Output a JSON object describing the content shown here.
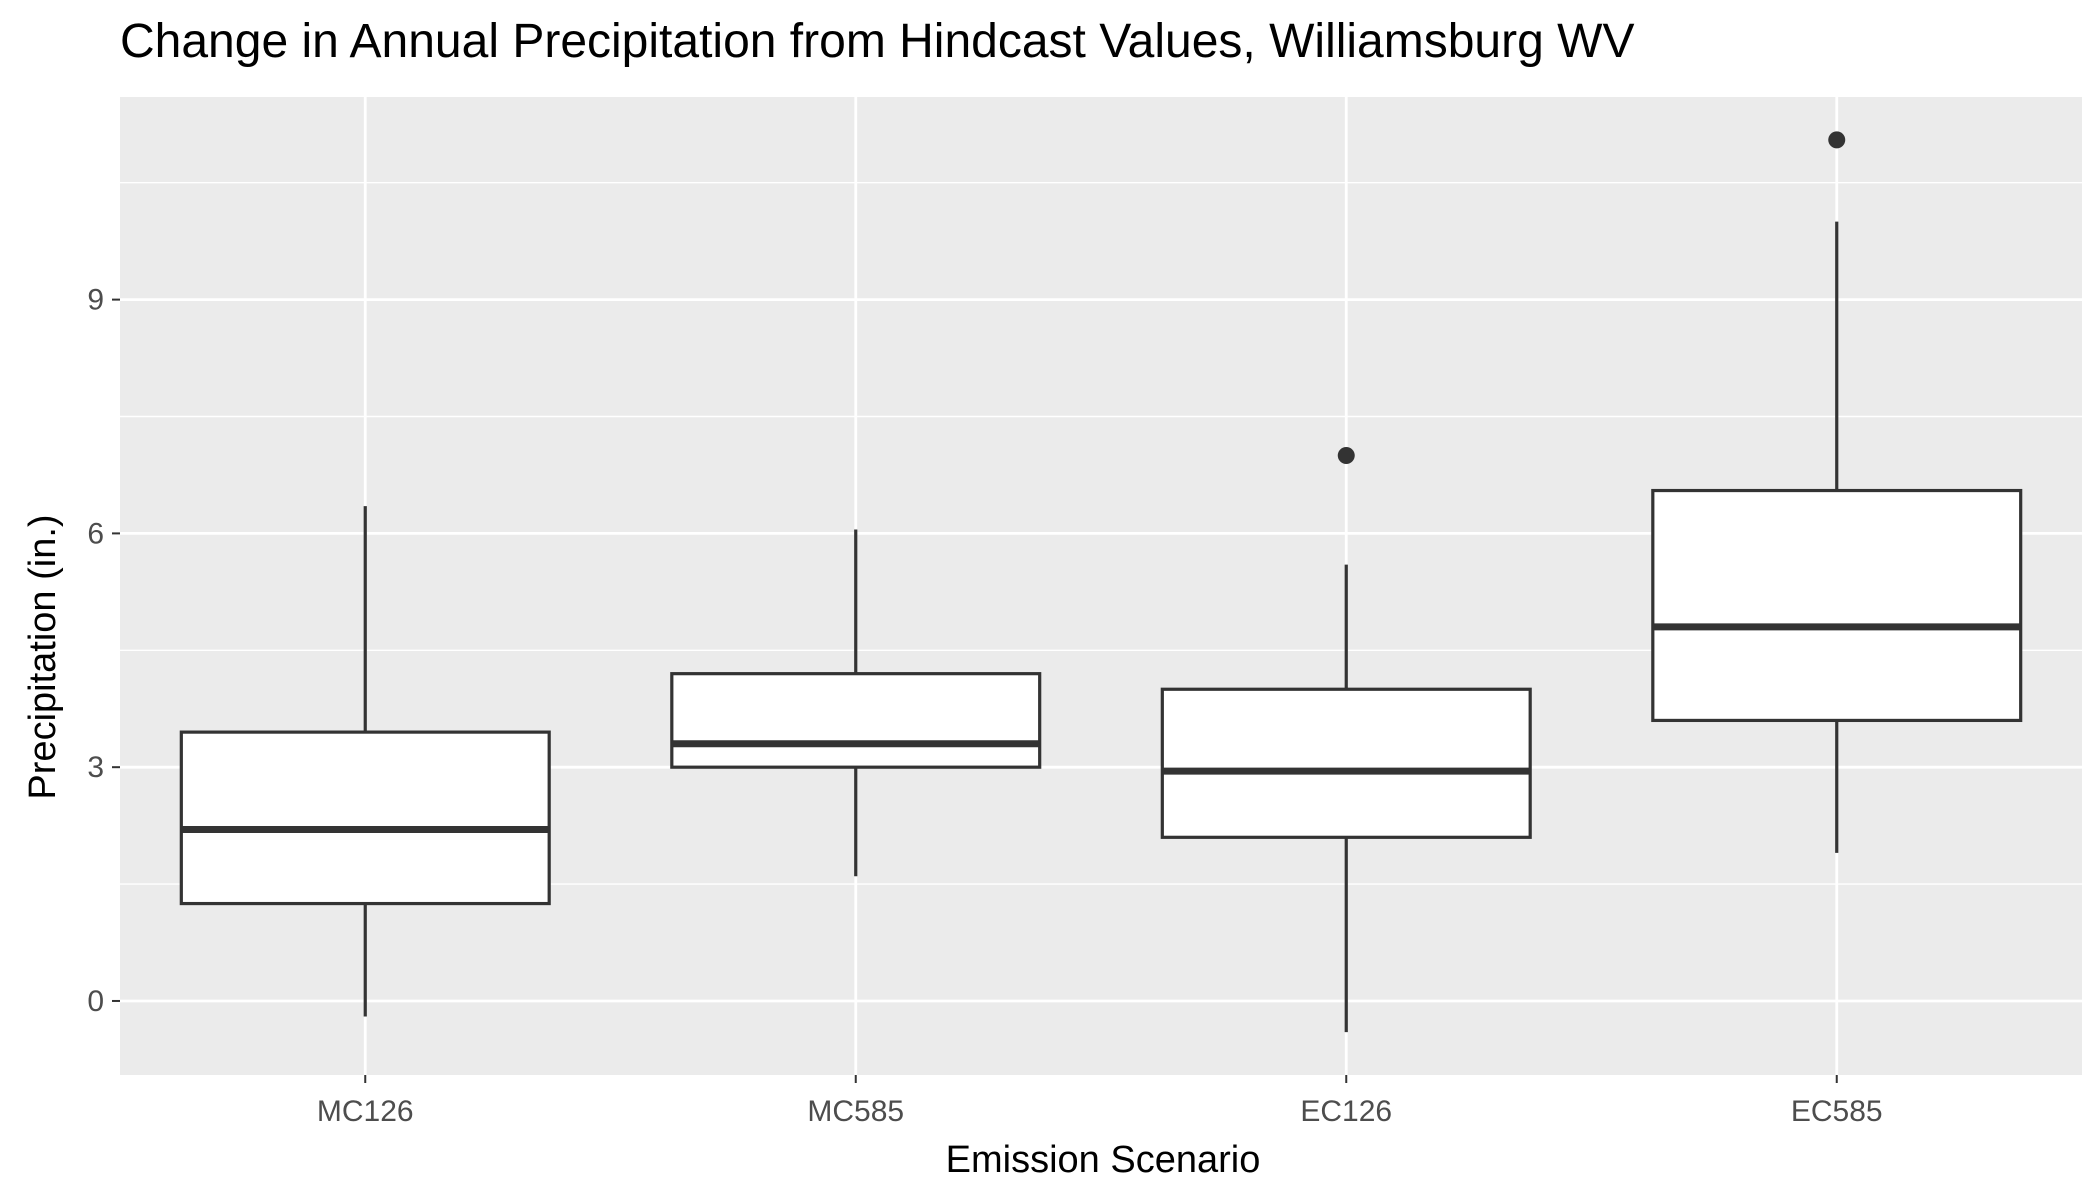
{
  "chart_data": {
    "type": "boxplot",
    "title": "Change in Annual Precipitation from Hindcast Values, Williamsburg WV",
    "xlabel": "Emission Scenario",
    "ylabel": "Precipitation (in.)",
    "ylim": [
      -0.95,
      11.6
    ],
    "yticks": [
      0,
      3,
      6,
      9
    ],
    "grid": true,
    "categories": [
      "MC126",
      "MC585",
      "EC126",
      "EC585"
    ],
    "boxes": [
      {
        "category": "MC126",
        "whisker_low": -0.2,
        "q1": 1.25,
        "median": 2.2,
        "q3": 3.45,
        "whisker_high": 6.35,
        "outliers": []
      },
      {
        "category": "MC585",
        "whisker_low": 1.6,
        "q1": 3.0,
        "median": 3.3,
        "q3": 4.2,
        "whisker_high": 6.05,
        "outliers": []
      },
      {
        "category": "EC126",
        "whisker_low": -0.4,
        "q1": 2.1,
        "median": 2.95,
        "q3": 4.0,
        "whisker_high": 5.6,
        "outliers": [
          7.0
        ]
      },
      {
        "category": "EC585",
        "whisker_low": 1.9,
        "q1": 3.6,
        "median": 4.8,
        "q3": 6.55,
        "whisker_high": 10.0,
        "outliers": [
          11.05
        ]
      }
    ],
    "colors": {
      "panel": "#ebebeb",
      "grid": "#ffffff",
      "box_fill": "#ffffff",
      "box_stroke": "#333333",
      "outlier": "#333333"
    }
  }
}
